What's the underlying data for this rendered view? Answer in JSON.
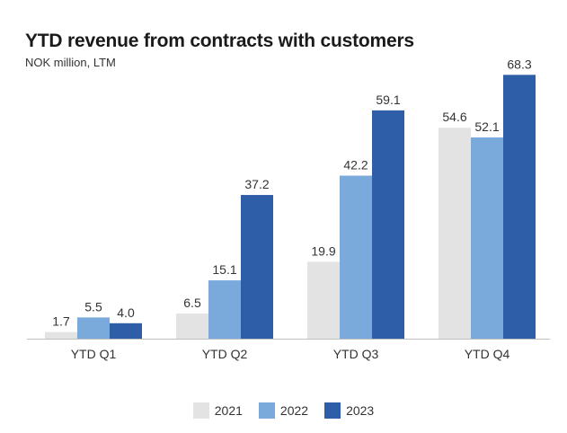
{
  "chart_data": {
    "type": "bar",
    "title": "YTD revenue from contracts with customers",
    "subtitle": "NOK million, LTM",
    "categories": [
      "YTD Q1",
      "YTD Q2",
      "YTD Q3",
      "YTD Q4"
    ],
    "series": [
      {
        "name": "2021",
        "values": [
          1.7,
          6.5,
          19.9,
          54.6
        ],
        "labels": [
          "1.7",
          "6.5",
          "19.9",
          "54.6"
        ],
        "color": "#e3e3e3"
      },
      {
        "name": "2022",
        "values": [
          5.5,
          15.1,
          42.2,
          52.1
        ],
        "labels": [
          "5.5",
          "15.1",
          "42.2",
          "52.1"
        ],
        "color": "#7aaadb"
      },
      {
        "name": "2023",
        "values": [
          4.0,
          37.2,
          59.1,
          68.3
        ],
        "labels": [
          "4.0",
          "37.2",
          "59.1",
          "68.3"
        ],
        "color": "#2f5ea8"
      }
    ],
    "xlabel": "",
    "ylabel": "",
    "ylim": [
      0,
      70
    ],
    "grid": false,
    "legend_position": "bottom"
  }
}
